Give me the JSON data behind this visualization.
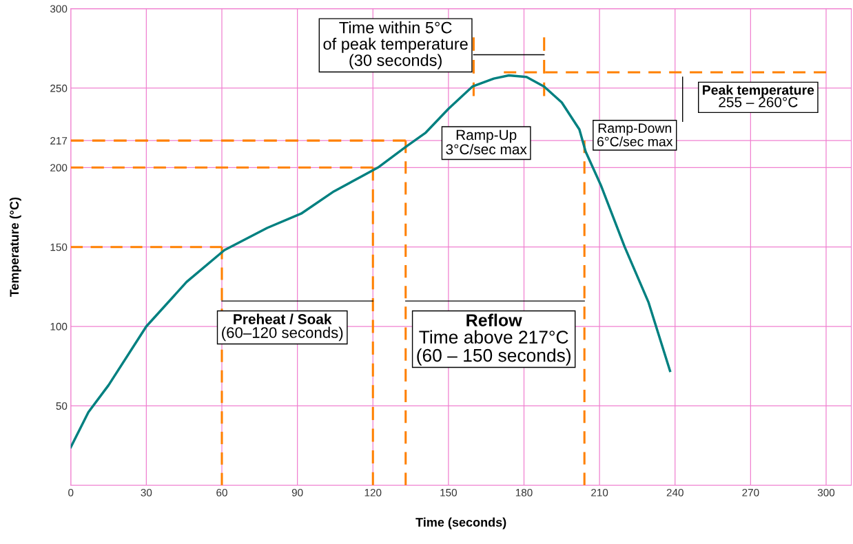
{
  "chart_data": {
    "type": "line",
    "xlabel": "Time (seconds)",
    "ylabel": "Temperature (°C)",
    "xlim": [
      0,
      310
    ],
    "ylim": [
      0,
      300
    ],
    "xticks": [
      0,
      30,
      60,
      90,
      120,
      150,
      180,
      210,
      240,
      270,
      300
    ],
    "yticks": [
      50,
      100,
      150,
      200,
      217,
      250,
      300
    ],
    "grid": true,
    "marker": "none",
    "series": [
      {
        "color": "#008080",
        "line_style": "solid",
        "x": [
          0,
          7,
          15,
          30,
          46,
          61,
          78,
          91.5,
          104.5,
          122,
          133,
          141,
          150,
          159.5,
          168,
          174,
          181,
          188,
          195,
          202,
          204.5,
          210.5,
          220,
          229.5,
          238
        ],
        "values": [
          24,
          46,
          63,
          100,
          128,
          148,
          162,
          171,
          185,
          200,
          213,
          222,
          237,
          251,
          256,
          258,
          257,
          251,
          241,
          224,
          210,
          189,
          150,
          115,
          72
        ]
      },
      {
        "color": "#ff8000",
        "line_style": "dashed",
        "x": [
          0,
          60
        ],
        "values": [
          150,
          150
        ]
      },
      {
        "color": "#ff8000",
        "line_style": "dashed",
        "x": [
          0,
          120
        ],
        "values": [
          200,
          200
        ]
      },
      {
        "color": "#ff8000",
        "line_style": "dashed",
        "x": [
          0,
          133
        ],
        "values": [
          217,
          217
        ]
      },
      {
        "color": "#ff8000",
        "line_style": "dashed",
        "x": [
          172,
          300
        ],
        "values": [
          260,
          260
        ]
      },
      {
        "color": "#ff8000",
        "line_style": "dashed",
        "x": [
          60,
          60
        ],
        "values": [
          0,
          150
        ]
      },
      {
        "color": "#ff8000",
        "line_style": "dashed",
        "x": [
          120,
          120
        ],
        "values": [
          0,
          200
        ]
      },
      {
        "color": "#ff8000",
        "line_style": "dashed",
        "x": [
          133,
          133
        ],
        "values": [
          0,
          217
        ]
      },
      {
        "color": "#ff8000",
        "line_style": "dashed",
        "x": [
          204,
          204
        ],
        "values": [
          0,
          217
        ]
      },
      {
        "color": "#ff8000",
        "line_style": "dashed",
        "x": [
          160,
          160
        ],
        "values": [
          245,
          282
        ]
      },
      {
        "color": "#ff8000",
        "line_style": "dashed",
        "x": [
          188,
          188
        ],
        "values": [
          245,
          282
        ]
      },
      {
        "color": "#000000",
        "line_style": "solid",
        "x": [
          60,
          120
        ],
        "values": [
          116,
          116
        ]
      },
      {
        "color": "#000000",
        "line_style": "solid",
        "x": [
          133,
          204
        ],
        "values": [
          116,
          116
        ]
      },
      {
        "color": "#000000",
        "line_style": "solid",
        "x": [
          160,
          188
        ],
        "values": [
          271,
          271
        ]
      },
      {
        "color": "#000000",
        "line_style": "solid",
        "x": [
          243,
          243
        ],
        "values": [
          229,
          257
        ]
      }
    ],
    "annotations": [
      "Time within 5°C\nof peak temperature\n(30 seconds)",
      "Ramp-Up\n3°C/sec max",
      "Ramp-Down\n6°C/sec max",
      "Peak temperature\n255 – 260°C",
      "Preheat / Soak\n(60–120 seconds)",
      "Reflow\nTime above 217°C\n(60 – 150 seconds)"
    ]
  }
}
